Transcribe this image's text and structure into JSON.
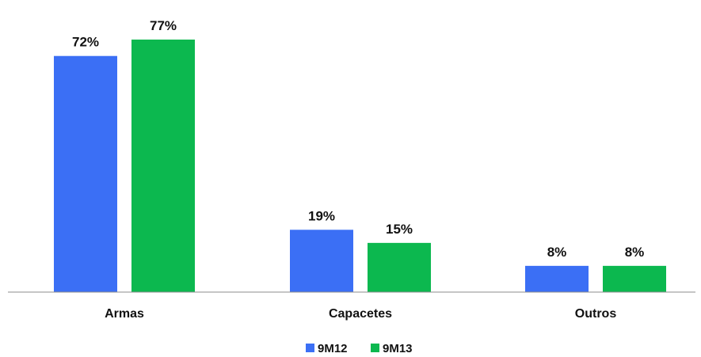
{
  "chart_data": {
    "type": "bar",
    "categories": [
      "Armas",
      "Capacetes",
      "Outros"
    ],
    "series": [
      {
        "name": "9M12",
        "values": [
          72,
          19,
          8
        ],
        "labels": [
          "72%",
          "19%",
          "8%"
        ],
        "color": "#3b6ff5"
      },
      {
        "name": "9M13",
        "values": [
          77,
          15,
          8
        ],
        "labels": [
          "77%",
          "15%",
          "8%"
        ],
        "color": "#0cb84f"
      }
    ],
    "title": "",
    "xlabel": "",
    "ylabel": "",
    "ylim": [
      0,
      77
    ],
    "grid": false,
    "legend_position": "bottom-center"
  }
}
